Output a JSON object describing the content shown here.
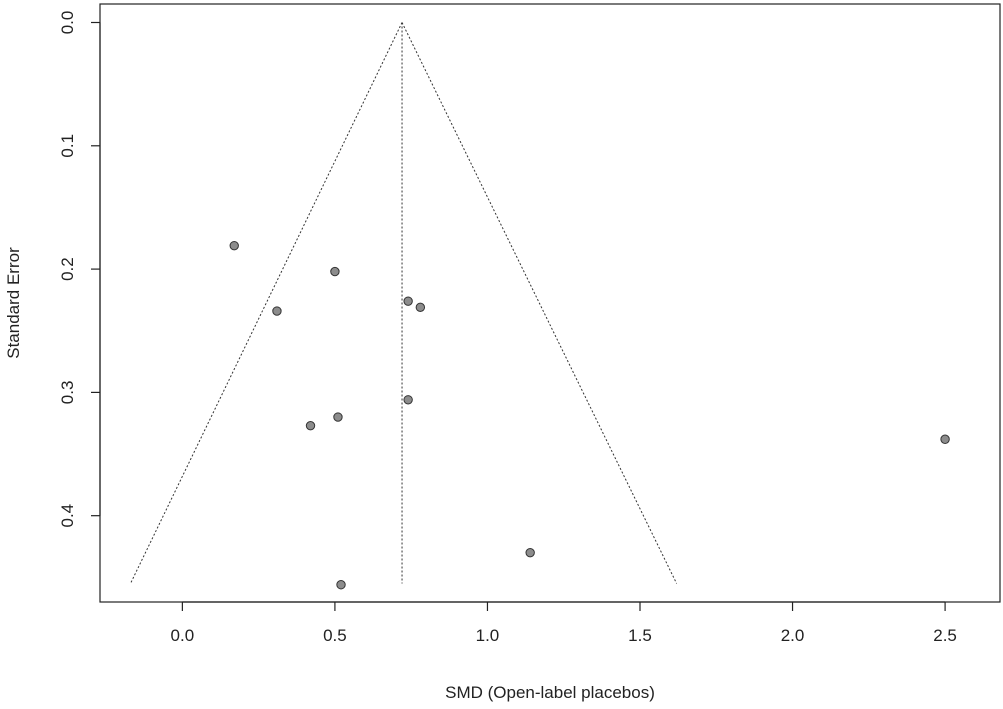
{
  "chart_data": {
    "type": "scatter",
    "plot": "funnel",
    "xlabel": "SMD (Open-label placebos)",
    "ylabel": "Standard Error",
    "xlim": [
      -0.27,
      2.68
    ],
    "ylim": [
      0.47,
      -0.015
    ],
    "y_reversed": true,
    "x_ticks": [
      0.0,
      0.5,
      1.0,
      1.5,
      2.0,
      2.5
    ],
    "x_tick_labels": [
      "0.0",
      "0.5",
      "1.0",
      "1.5",
      "2.0",
      "2.5"
    ],
    "y_ticks": [
      0.0,
      0.1,
      0.2,
      0.3,
      0.4
    ],
    "y_tick_labels": [
      "0.0",
      "0.1",
      "0.2",
      "0.3",
      "0.4"
    ],
    "pooled_estimate": 0.72,
    "funnel_apex_se": 0.0,
    "funnel_base_se": 0.455,
    "funnel_base_x": [
      -0.17,
      1.62
    ],
    "points": [
      {
        "x": 0.17,
        "y": 0.181
      },
      {
        "x": 0.5,
        "y": 0.202
      },
      {
        "x": 0.31,
        "y": 0.234
      },
      {
        "x": 0.74,
        "y": 0.226
      },
      {
        "x": 0.78,
        "y": 0.231
      },
      {
        "x": 0.74,
        "y": 0.306
      },
      {
        "x": 0.51,
        "y": 0.32
      },
      {
        "x": 0.42,
        "y": 0.327
      },
      {
        "x": 2.5,
        "y": 0.338
      },
      {
        "x": 1.14,
        "y": 0.43
      },
      {
        "x": 0.52,
        "y": 0.456
      }
    ],
    "grid": false,
    "colors": {
      "point_fill": "#8c8c8c",
      "point_stroke": "#333333",
      "line": "#333333",
      "frame": "#222222"
    }
  }
}
